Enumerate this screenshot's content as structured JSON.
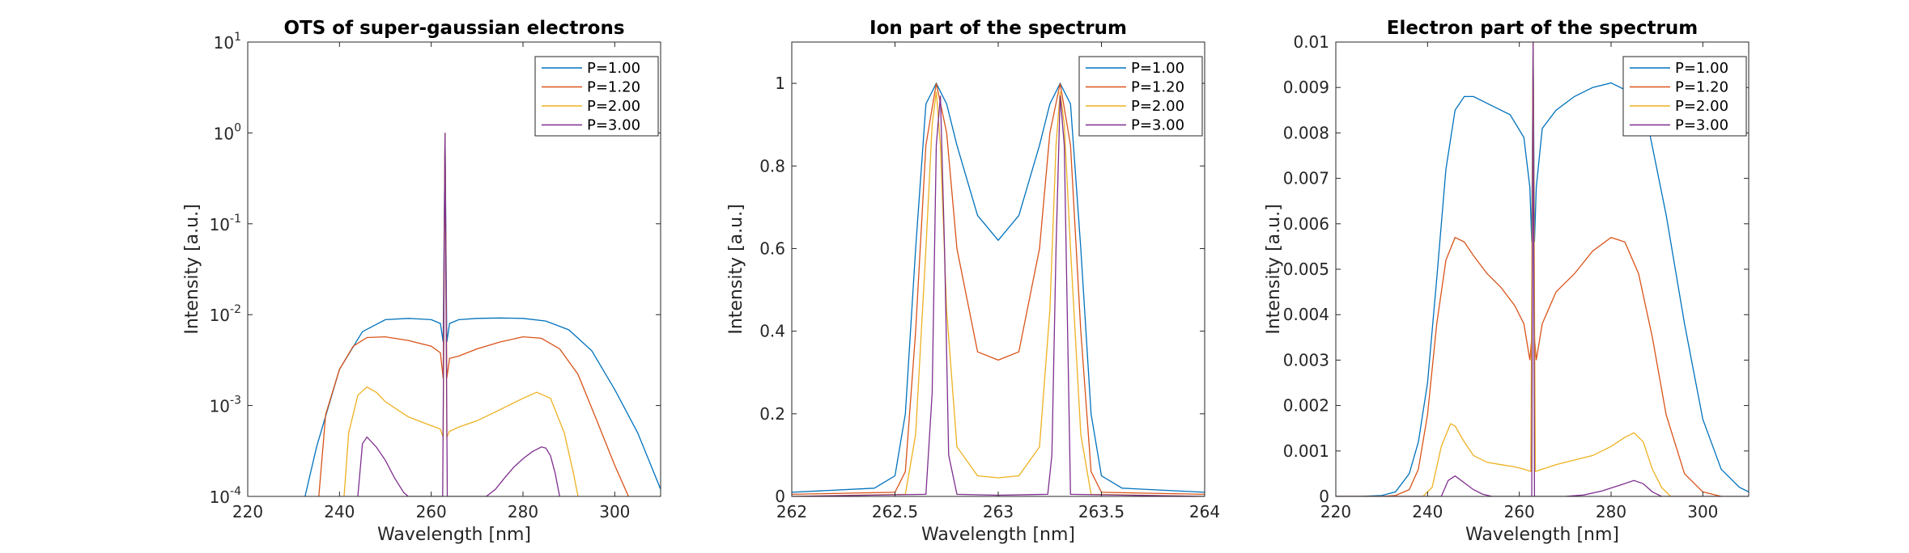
{
  "chart_data": [
    {
      "type": "line",
      "title": "OTS of super-gaussian electrons",
      "xlabel": "Wavelength [nm]",
      "ylabel": "Intensity [a.u.]",
      "xlim": [
        220,
        310
      ],
      "ylim": [
        0.0001,
        10
      ],
      "yscale": "log",
      "xticks": [
        220,
        240,
        260,
        280,
        300
      ],
      "xtick_labels": [
        "220",
        "240",
        "260",
        "280",
        "300"
      ],
      "yticks": [
        0.0001,
        0.001,
        0.01,
        0.1,
        1,
        10
      ],
      "ytick_labels": [
        {
          "base": "10",
          "exp": "-4"
        },
        {
          "base": "10",
          "exp": "-3"
        },
        {
          "base": "10",
          "exp": "-2"
        },
        {
          "base": "10",
          "exp": "-1"
        },
        {
          "base": "10",
          "exp": "0"
        },
        {
          "base": "10",
          "exp": "1"
        }
      ],
      "legend_position": "top-right",
      "legend": [
        "P=1.00",
        "P=1.20",
        "P=2.00",
        "P=3.00"
      ],
      "series": [
        {
          "name": "P=1.00",
          "color": "#0072bd",
          "x": [
            232.5,
            235,
            240,
            245,
            250,
            255,
            260,
            262,
            262.6,
            263,
            263.4,
            264,
            266,
            270,
            275,
            280,
            285,
            290,
            295,
            300,
            305,
            310
          ],
          "y": [
            0.0001,
            0.00035,
            0.0025,
            0.0065,
            0.0088,
            0.0091,
            0.0088,
            0.008,
            0.005,
            1,
            0.005,
            0.008,
            0.0088,
            0.0091,
            0.0092,
            0.0091,
            0.0085,
            0.0068,
            0.004,
            0.0015,
            0.0005,
            0.00012
          ]
        },
        {
          "name": "P=1.20",
          "color": "#d95319",
          "x": [
            235.5,
            237,
            240,
            243,
            246,
            250,
            255,
            260,
            262,
            262.6,
            263,
            263.4,
            264,
            266,
            270,
            275,
            280,
            284,
            288,
            292,
            296,
            300,
            303
          ],
          "y": [
            0.0001,
            0.0008,
            0.0025,
            0.0045,
            0.0056,
            0.0057,
            0.0052,
            0.0045,
            0.0038,
            0.002,
            1,
            0.002,
            0.0033,
            0.0035,
            0.0042,
            0.005,
            0.0057,
            0.0055,
            0.0042,
            0.0022,
            0.0007,
            0.00022,
            0.0001
          ]
        },
        {
          "name": "P=2.00",
          "color": "#edb120",
          "x": [
            241,
            242,
            244,
            246,
            248,
            250,
            255,
            260,
            262,
            262.6,
            263,
            263.4,
            264,
            266,
            270,
            275,
            280,
            283,
            286,
            289,
            291,
            292
          ],
          "y": [
            0.0001,
            0.0005,
            0.0013,
            0.0016,
            0.0014,
            0.0011,
            0.00075,
            0.0006,
            0.00055,
            0.00045,
            1,
            0.00045,
            0.00052,
            0.00058,
            0.00068,
            0.0009,
            0.0012,
            0.0014,
            0.0012,
            0.0005,
            0.00018,
            0.0001
          ]
        },
        {
          "name": "P=3.00",
          "color": "#7e2f8e",
          "x": [
            244,
            245,
            246,
            248,
            250,
            252,
            254,
            255,
            262.5,
            263,
            263.5,
            272,
            274,
            276,
            278,
            280,
            282,
            284,
            285,
            286,
            287,
            288
          ],
          "y": [
            0.0001,
            0.00038,
            0.00045,
            0.00035,
            0.00025,
            0.00016,
            0.00011,
            0.0001,
            0.0001,
            1,
            0.0001,
            0.0001,
            0.00012,
            0.00016,
            0.00021,
            0.00026,
            0.00031,
            0.00035,
            0.00034,
            0.00028,
            0.00018,
            0.0001
          ]
        }
      ]
    },
    {
      "type": "line",
      "title": "Ion part of the spectrum",
      "xlabel": "Wavelength [nm]",
      "ylabel": "Intensity [a.u.]",
      "xlim": [
        262,
        264
      ],
      "ylim": [
        0,
        1.1
      ],
      "xticks": [
        262,
        262.5,
        263,
        263.5,
        264
      ],
      "xtick_labels": [
        "262",
        "262.5",
        "263",
        "263.5",
        "264"
      ],
      "yticks": [
        0,
        0.2,
        0.4,
        0.6,
        0.8,
        1
      ],
      "ytick_labels": [
        "0",
        "0.2",
        "0.4",
        "0.6",
        "0.8",
        "1"
      ],
      "legend_position": "top-right",
      "legend": [
        "P=1.00",
        "P=1.20",
        "P=2.00",
        "P=3.00"
      ],
      "series": [
        {
          "name": "P=1.00",
          "color": "#0072bd",
          "x": [
            262,
            262.4,
            262.5,
            262.55,
            262.6,
            262.65,
            262.7,
            262.75,
            262.8,
            262.9,
            263,
            263.1,
            263.2,
            263.25,
            263.3,
            263.35,
            263.4,
            263.45,
            263.5,
            263.6,
            264
          ],
          "y": [
            0.01,
            0.02,
            0.05,
            0.2,
            0.6,
            0.95,
            1.0,
            0.95,
            0.85,
            0.68,
            0.62,
            0.68,
            0.85,
            0.95,
            1.0,
            0.95,
            0.6,
            0.2,
            0.05,
            0.02,
            0.01
          ]
        },
        {
          "name": "P=1.20",
          "color": "#d95319",
          "x": [
            262,
            262.5,
            262.55,
            262.6,
            262.65,
            262.7,
            262.75,
            262.8,
            262.9,
            263,
            263.1,
            263.2,
            263.25,
            263.3,
            263.35,
            263.4,
            263.45,
            263.5,
            264
          ],
          "y": [
            0.005,
            0.01,
            0.06,
            0.4,
            0.85,
            1.0,
            0.88,
            0.6,
            0.35,
            0.33,
            0.35,
            0.6,
            0.88,
            1.0,
            0.85,
            0.4,
            0.06,
            0.01,
            0.005
          ]
        },
        {
          "name": "P=2.00",
          "color": "#edb120",
          "x": [
            262,
            262.55,
            262.6,
            262.65,
            262.68,
            262.7,
            262.72,
            262.75,
            262.8,
            262.9,
            263,
            263.1,
            263.2,
            263.25,
            263.28,
            263.3,
            263.32,
            263.35,
            263.4,
            263.45,
            264
          ],
          "y": [
            0,
            0.005,
            0.15,
            0.6,
            0.9,
            0.98,
            0.85,
            0.45,
            0.12,
            0.05,
            0.045,
            0.05,
            0.12,
            0.45,
            0.85,
            0.98,
            0.9,
            0.6,
            0.15,
            0.005,
            0
          ]
        },
        {
          "name": "P=3.00",
          "color": "#7e2f8e",
          "x": [
            262,
            262.65,
            262.68,
            262.7,
            262.72,
            262.74,
            262.76,
            262.8,
            263,
            263.24,
            263.26,
            263.28,
            263.3,
            263.32,
            263.35,
            264
          ],
          "y": [
            0,
            0.005,
            0.25,
            0.85,
            0.97,
            0.6,
            0.1,
            0.005,
            0.003,
            0.005,
            0.1,
            0.6,
            0.97,
            0.85,
            0.005,
            0
          ]
        }
      ]
    },
    {
      "type": "line",
      "title": "Electron part of the spectrum",
      "xlabel": "Wavelength [nm]",
      "ylabel": "Intensity [a.u.]",
      "xlim": [
        220,
        310
      ],
      "ylim": [
        0,
        0.01
      ],
      "xticks": [
        220,
        240,
        260,
        280,
        300
      ],
      "xtick_labels": [
        "220",
        "240",
        "260",
        "280",
        "300"
      ],
      "yticks": [
        0,
        0.001,
        0.002,
        0.003,
        0.004,
        0.005,
        0.006,
        0.007,
        0.008,
        0.009,
        0.01
      ],
      "ytick_labels": [
        "0",
        "0.001",
        "0.002",
        "0.003",
        "0.004",
        "0.005",
        "0.006",
        "0.007",
        "0.008",
        "0.009",
        "0.01"
      ],
      "legend_position": "top-right",
      "legend": [
        "P=1.00",
        "P=1.20",
        "P=2.00",
        "P=3.00"
      ],
      "series": [
        {
          "name": "P=1.00",
          "color": "#0072bd",
          "x": [
            220,
            225,
            230,
            233,
            236,
            238,
            240,
            242,
            244,
            246,
            248,
            250,
            254,
            258,
            261,
            262.3,
            262.7,
            263,
            263.3,
            263.7,
            265,
            268,
            272,
            276,
            280,
            284,
            288,
            292,
            296,
            300,
            304,
            308,
            310
          ],
          "y": [
            0,
            0,
            2e-05,
            0.0001,
            0.0005,
            0.0012,
            0.0025,
            0.0048,
            0.0072,
            0.0085,
            0.0088,
            0.0088,
            0.0086,
            0.0084,
            0.0079,
            0.0068,
            0.0056,
            0.01,
            0.0056,
            0.0068,
            0.0081,
            0.0085,
            0.0088,
            0.009,
            0.0091,
            0.0089,
            0.0082,
            0.0062,
            0.0038,
            0.0017,
            0.0006,
            0.0002,
            0.0001
          ]
        },
        {
          "name": "P=1.20",
          "color": "#d95319",
          "x": [
            220,
            230,
            233,
            236,
            238,
            240,
            242,
            244,
            246,
            248,
            250,
            253,
            256,
            259,
            261,
            262.3,
            262.7,
            263,
            263.3,
            263.7,
            265,
            268,
            272,
            276,
            280,
            283,
            286,
            289,
            292,
            296,
            300,
            304
          ],
          "y": [
            0,
            0,
            2e-05,
            0.00015,
            0.0006,
            0.0018,
            0.0038,
            0.0052,
            0.0057,
            0.0056,
            0.0053,
            0.0049,
            0.0046,
            0.0042,
            0.0038,
            0.003,
            0.0035,
            0.01,
            0.0035,
            0.003,
            0.0038,
            0.0045,
            0.0049,
            0.0054,
            0.0057,
            0.0056,
            0.0049,
            0.0035,
            0.0018,
            0.0005,
            0.0001,
            0
          ]
        },
        {
          "name": "P=2.00",
          "color": "#edb120",
          "x": [
            220,
            239,
            241,
            243,
            245,
            246,
            248,
            250,
            253,
            256,
            259,
            261,
            262.5,
            263,
            263.5,
            265,
            268,
            272,
            276,
            280,
            283,
            285,
            287,
            289,
            291,
            293,
            300
          ],
          "y": [
            0,
            0,
            0.0002,
            0.0011,
            0.0016,
            0.00155,
            0.0012,
            0.0009,
            0.00075,
            0.0007,
            0.00065,
            0.0006,
            0.00055,
            0.01,
            0.00055,
            0.0006,
            0.0007,
            0.0008,
            0.0009,
            0.0011,
            0.0013,
            0.0014,
            0.0012,
            0.0006,
            0.0002,
            0,
            0
          ]
        },
        {
          "name": "P=3.00",
          "color": "#7e2f8e",
          "x": [
            220,
            243,
            244.5,
            246,
            248,
            250,
            252,
            254,
            256,
            262.7,
            263,
            263.3,
            270,
            274,
            278,
            282,
            285,
            287,
            289,
            291,
            310
          ],
          "y": [
            0,
            0,
            0.00035,
            0.00045,
            0.0003,
            0.00015,
            5e-05,
            0,
            0,
            0,
            0.01,
            0,
            0,
            3e-05,
            0.00012,
            0.00025,
            0.00035,
            0.00028,
            0.0001,
            0,
            0
          ]
        }
      ]
    }
  ]
}
